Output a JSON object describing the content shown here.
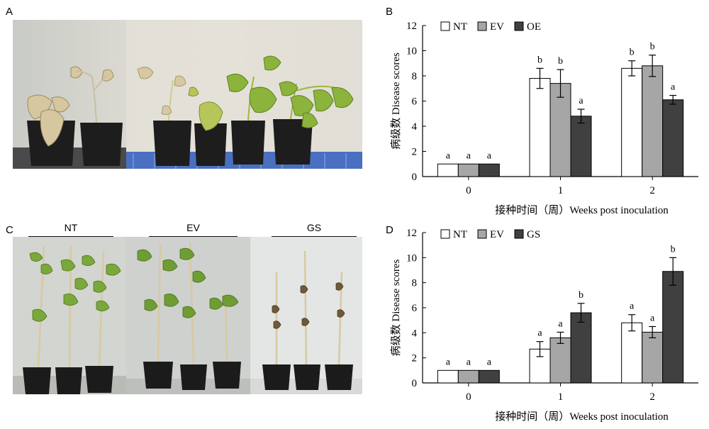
{
  "panels": {
    "A": "A",
    "B": "B",
    "C": "C",
    "D": "D"
  },
  "photo_A": {
    "groups": [
      "NT",
      "EV",
      "OE"
    ]
  },
  "photo_C": {
    "groups": [
      "NT",
      "EV",
      "GS"
    ]
  },
  "colors": {
    "NT": "#ffffff",
    "EV": "#a6a6a6",
    "OE": "#404040",
    "GS": "#404040",
    "stroke": "#000000"
  },
  "chart_data": [
    {
      "panel": "B",
      "type": "bar",
      "categories": [
        "0",
        "1",
        "2"
      ],
      "series": [
        {
          "name": "NT",
          "values": [
            1.0,
            7.8,
            8.6
          ],
          "errors": [
            0,
            0.8,
            0.6
          ],
          "letters": [
            "a",
            "b",
            "b"
          ]
        },
        {
          "name": "EV",
          "values": [
            1.0,
            7.4,
            8.8
          ],
          "errors": [
            0,
            1.1,
            0.85
          ],
          "letters": [
            "a",
            "b",
            "b"
          ]
        },
        {
          "name": "OE",
          "values": [
            1.0,
            4.8,
            6.1
          ],
          "errors": [
            0,
            0.55,
            0.35
          ],
          "letters": [
            "a",
            "a",
            "a"
          ]
        }
      ],
      "xlabel": "接种时间（周）Weeks post inoculation",
      "ylabel": "病级数 Disease scores",
      "ylim": [
        0,
        12
      ],
      "yticks": [
        0,
        2,
        4,
        6,
        8,
        10,
        12
      ],
      "legend": "top-left"
    },
    {
      "panel": "D",
      "type": "bar",
      "categories": [
        "0",
        "1",
        "2"
      ],
      "series": [
        {
          "name": "NT",
          "values": [
            1.0,
            2.7,
            4.8
          ],
          "errors": [
            0,
            0.6,
            0.65
          ],
          "letters": [
            "a",
            "a",
            "a"
          ]
        },
        {
          "name": "EV",
          "values": [
            1.0,
            3.6,
            4.05
          ],
          "errors": [
            0,
            0.45,
            0.45
          ],
          "letters": [
            "a",
            "a",
            "a"
          ]
        },
        {
          "name": "GS",
          "values": [
            1.0,
            5.6,
            8.9
          ],
          "errors": [
            0,
            0.75,
            1.1
          ],
          "letters": [
            "a",
            "b",
            "b"
          ]
        }
      ],
      "xlabel": "接种时间（周）Weeks post inoculation",
      "ylabel": "病级数 Disease scores",
      "ylim": [
        0,
        12
      ],
      "yticks": [
        0,
        2,
        4,
        6,
        8,
        10,
        12
      ],
      "legend": "top-left"
    }
  ]
}
